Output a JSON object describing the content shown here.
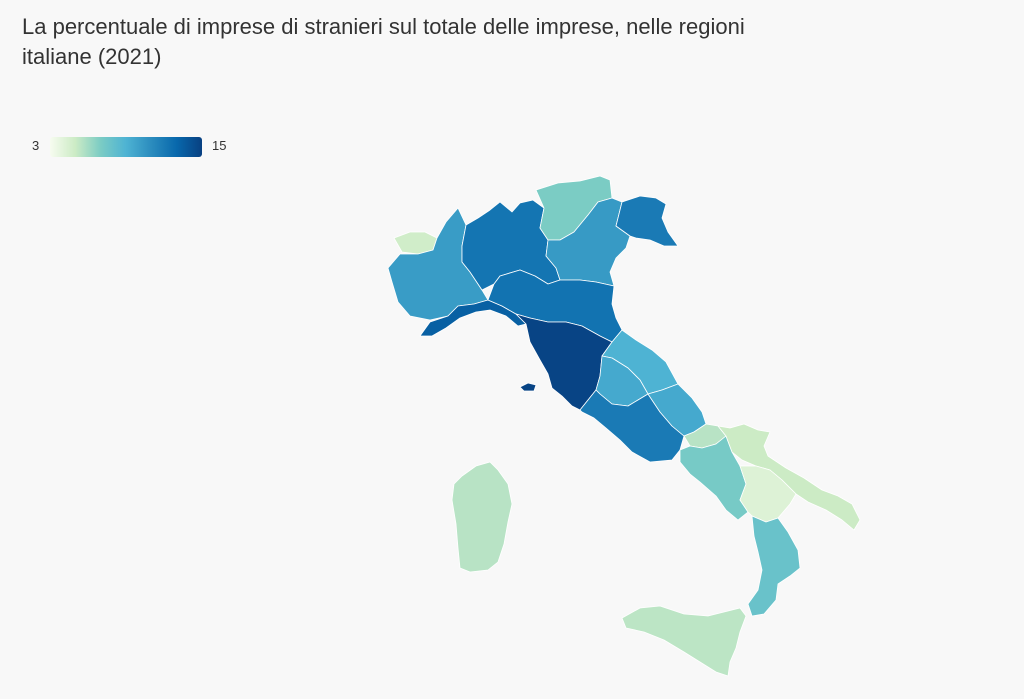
{
  "title": "La percentuale di imprese di stranieri sul totale delle imprese, nelle regioni italiane (2021)",
  "legend": {
    "min_label": "3",
    "max_label": "15",
    "min": 3,
    "max": 15,
    "colors": [
      "#f7fcf0",
      "#ccebc5",
      "#7bccc4",
      "#4eb3d3",
      "#2b8cbe",
      "#0868ac",
      "#084081"
    ]
  },
  "regions": [
    {
      "name": "Valle d'Aosta",
      "value": 4.8
    },
    {
      "name": "Piemonte",
      "value": 10.2
    },
    {
      "name": "Lombardia",
      "value": 12.3
    },
    {
      "name": "Trentino-Alto Adige",
      "value": 7.0
    },
    {
      "name": "Veneto",
      "value": 10.3
    },
    {
      "name": "Friuli-Venezia Giulia",
      "value": 12.0
    },
    {
      "name": "Liguria",
      "value": 13.4
    },
    {
      "name": "Emilia-Romagna",
      "value": 12.4
    },
    {
      "name": "Toscana",
      "value": 14.8
    },
    {
      "name": "Marche",
      "value": 9.0
    },
    {
      "name": "Umbria",
      "value": 9.5
    },
    {
      "name": "Lazio",
      "value": 12.0
    },
    {
      "name": "Abruzzo",
      "value": 9.5
    },
    {
      "name": "Molise",
      "value": 5.5
    },
    {
      "name": "Campania",
      "value": 7.2
    },
    {
      "name": "Puglia",
      "value": 5.0
    },
    {
      "name": "Basilicata",
      "value": 4.2
    },
    {
      "name": "Calabria",
      "value": 7.8
    },
    {
      "name": "Sicilia",
      "value": 5.4
    },
    {
      "name": "Sardegna",
      "value": 5.5
    }
  ]
}
